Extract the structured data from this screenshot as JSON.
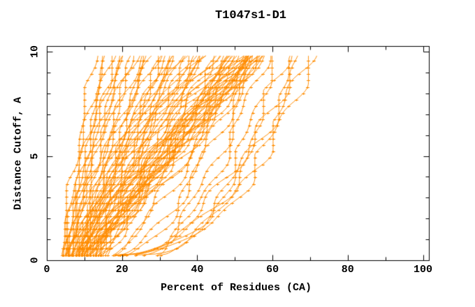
{
  "figure": {
    "background": "#ffffff",
    "axis_color": "#000000"
  },
  "chart_data": {
    "type": "line",
    "title": "T1047s1-D1",
    "xlabel": "Percent of Residues (CA)",
    "ylabel": "Distance Cutoff, A",
    "xlim": [
      0,
      100
    ],
    "ylim": [
      0,
      10
    ],
    "x_major_ticks": [
      0,
      20,
      40,
      60,
      80,
      100
    ],
    "x_minor_ticks": [
      10,
      30,
      50,
      70,
      90
    ],
    "y_major_ticks": [
      0,
      5,
      10
    ],
    "y_minor_ticks": [
      1,
      2,
      3,
      4,
      6,
      7,
      8,
      9
    ],
    "grid": false,
    "legend": null,
    "line_color": "#ff8c00",
    "marker": "plus",
    "marker_y_step": 0.31,
    "cutoff_min": 0.25,
    "cutoff_max": 9.8,
    "series_note": "Each curve is one model: percent of CA residues under distance cutoff. Params: [percent_at_min_cutoff, percent_at_max_cutoff, shape_power, wobble_phase]",
    "curves": [
      [
        4,
        13,
        1.3,
        0.5
      ],
      [
        4.5,
        15,
        1.2,
        1.7
      ],
      [
        5,
        16,
        1.25,
        2.9
      ],
      [
        4,
        17,
        1.15,
        4.1
      ],
      [
        5.5,
        18,
        1.3,
        5.3
      ],
      [
        5,
        19,
        1.1,
        0.9
      ],
      [
        6,
        20,
        1.2,
        2.1
      ],
      [
        5.5,
        21,
        1.35,
        3.3
      ],
      [
        6,
        22,
        1.15,
        4.5
      ],
      [
        6.5,
        23,
        1.25,
        5.7
      ],
      [
        5,
        24,
        1.0,
        0.3
      ],
      [
        6,
        25,
        1.1,
        1.1
      ],
      [
        7,
        26,
        0.95,
        1.9
      ],
      [
        6.5,
        27,
        1.2,
        2.7
      ],
      [
        7,
        28,
        1.05,
        3.5
      ],
      [
        8,
        29,
        1.15,
        4.3
      ],
      [
        6,
        30,
        0.9,
        5.1
      ],
      [
        7.5,
        31,
        1.1,
        5.9
      ],
      [
        8,
        32,
        1.0,
        0.7
      ],
      [
        9,
        33,
        1.2,
        1.5
      ],
      [
        7,
        34,
        0.95,
        2.3
      ],
      [
        8.5,
        35,
        1.1,
        3.1
      ],
      [
        9,
        36,
        1.25,
        3.9
      ],
      [
        8,
        37,
        1.0,
        4.7
      ],
      [
        9.5,
        38,
        1.15,
        5.5
      ],
      [
        7,
        39,
        0.9,
        0.2
      ],
      [
        8,
        40,
        1.05,
        1.0
      ],
      [
        10,
        41,
        1.2,
        1.8
      ],
      [
        9,
        42,
        0.95,
        2.6
      ],
      [
        10,
        43,
        1.1,
        3.4
      ],
      [
        8.5,
        44,
        1.0,
        4.2
      ],
      [
        9,
        45,
        1.15,
        5.0
      ],
      [
        10,
        46,
        0.9,
        5.8
      ],
      [
        9.5,
        47,
        1.05,
        0.4
      ],
      [
        10,
        48,
        1.2,
        1.2
      ],
      [
        7.5,
        36,
        1.3,
        2.0
      ],
      [
        6.5,
        33,
        1.25,
        2.8
      ],
      [
        8,
        42,
        1.35,
        3.6
      ],
      [
        9,
        44,
        1.3,
        4.4
      ],
      [
        10,
        40,
        1.4,
        5.2
      ],
      [
        8,
        48,
        1.0,
        0.6
      ],
      [
        9,
        49,
        1.1,
        1.4
      ],
      [
        10,
        50,
        0.95,
        2.2
      ],
      [
        11,
        50,
        1.15,
        3.0
      ],
      [
        10,
        51,
        1.0,
        3.8
      ],
      [
        12,
        52,
        1.1,
        4.6
      ],
      [
        11,
        52,
        1.25,
        5.4
      ],
      [
        12,
        53,
        0.9,
        0.1
      ],
      [
        13,
        53,
        1.05,
        0.9
      ],
      [
        11,
        54,
        1.15,
        1.7
      ],
      [
        12,
        54,
        0.95,
        2.5
      ],
      [
        13,
        55,
        1.1,
        3.3
      ],
      [
        14,
        55,
        1.2,
        4.1
      ],
      [
        12,
        56,
        1.0,
        4.9
      ],
      [
        13,
        56,
        1.15,
        5.7
      ],
      [
        14,
        57,
        0.9,
        0.8
      ],
      [
        12.5,
        57,
        1.05,
        1.6
      ],
      [
        13.5,
        58,
        1.1,
        2.4
      ],
      [
        14,
        58,
        1.2,
        3.2
      ],
      [
        13,
        51,
        1.3,
        4.0
      ],
      [
        10,
        49,
        1.05,
        2.8
      ],
      [
        11,
        51,
        0.95,
        4.4
      ],
      [
        12,
        50,
        1.1,
        5.6
      ],
      [
        11.5,
        53,
        1.0,
        0.35
      ],
      [
        13,
        54,
        1.2,
        1.45
      ],
      [
        12,
        55,
        1.05,
        2.55
      ],
      [
        13.5,
        56,
        0.92,
        3.65
      ],
      [
        14,
        54,
        1.15,
        4.75
      ],
      [
        16,
        50,
        0.7,
        0.5
      ],
      [
        18,
        52,
        0.75,
        1.3
      ],
      [
        20,
        54,
        0.65,
        2.1
      ],
      [
        22,
        55,
        0.7,
        2.9
      ],
      [
        25,
        56,
        0.6,
        3.7
      ],
      [
        28,
        58,
        0.65,
        4.5
      ],
      [
        32,
        60,
        0.55,
        5.3
      ],
      [
        18,
        64,
        0.45,
        0.6
      ],
      [
        19,
        66,
        0.43,
        1.8
      ],
      [
        20,
        67,
        0.47,
        3.0
      ],
      [
        21,
        69,
        0.42,
        4.2
      ],
      [
        22,
        70,
        0.44,
        5.4
      ]
    ]
  }
}
